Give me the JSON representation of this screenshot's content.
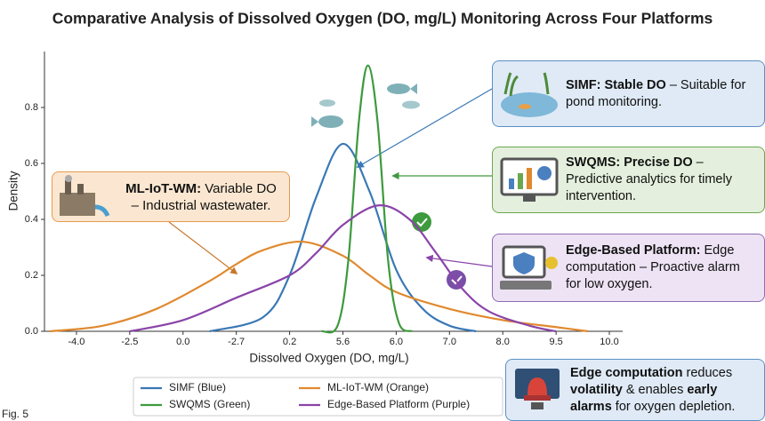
{
  "chart_data": {
    "type": "line",
    "title": "Comparative Analysis of Dissolved Oxygen (DO, mg/L) Monitoring Across Four Platforms",
    "xlabel": "Dissolved Oxygen (DO, mg/L)",
    "ylabel": "Density",
    "x_tick_labels": [
      "-4.0",
      "-2.5",
      "0.0",
      "-2.7",
      "0.2",
      "5.6",
      "6.0",
      "7.0",
      "8.0",
      "9.5",
      "10.0"
    ],
    "xlim": [
      -0.6,
      10.25
    ],
    "ylim": [
      0,
      1.0
    ],
    "yticks": [
      {
        "value": 0,
        "label": "0.0"
      },
      0.2,
      0.4,
      0.6,
      0.8
    ],
    "series": [
      {
        "name": "SIMF (Blue)",
        "color": "#3a78b5",
        "x": [
          2.5,
          3.5,
          4.0,
          4.5,
          5.0,
          5.5,
          6.0,
          6.5,
          7.0,
          7.5
        ],
        "values": [
          0.0,
          0.05,
          0.2,
          0.48,
          0.67,
          0.5,
          0.22,
          0.08,
          0.02,
          0.0
        ]
      },
      {
        "name": "ML-IoT-WM (Orange)",
        "color": "#e0892e",
        "x": [
          -0.5,
          0.5,
          1.5,
          2.5,
          3.0,
          3.5,
          4.25,
          5.0,
          5.5,
          6.0,
          7.0,
          8.0,
          9.0,
          9.6
        ],
        "values": [
          0.0,
          0.02,
          0.08,
          0.18,
          0.24,
          0.29,
          0.32,
          0.27,
          0.2,
          0.14,
          0.08,
          0.04,
          0.015,
          0.0
        ]
      },
      {
        "name": "SWQMS (Green)",
        "color": "#3d9a3d",
        "x": [
          4.6,
          4.9,
          5.1,
          5.3,
          5.47,
          5.65,
          5.85,
          6.05,
          6.3
        ],
        "values": [
          0.0,
          0.02,
          0.25,
          0.75,
          0.95,
          0.75,
          0.25,
          0.03,
          0.0
        ]
      },
      {
        "name": "Edge-Based Platform (Purple)",
        "color": "#8a44a8",
        "x": [
          1.0,
          2.0,
          3.0,
          4.0,
          4.5,
          5.0,
          5.67,
          6.25,
          6.75,
          7.25,
          7.75,
          8.5,
          9.0
        ],
        "values": [
          0.0,
          0.04,
          0.12,
          0.2,
          0.28,
          0.38,
          0.45,
          0.4,
          0.28,
          0.15,
          0.07,
          0.02,
          0.0
        ]
      }
    ],
    "annotations": [
      {
        "runs": [
          {
            "text": "SIMF: Stable DO",
            "bold": true
          },
          {
            "text": " – Suitable for pond monitoring.",
            "bold": false
          }
        ]
      },
      {
        "runs": [
          {
            "text": "SWQMS: Precise DO",
            "bold": true
          },
          {
            "text": " – Predictive analytics for timely intervention.",
            "bold": false
          }
        ]
      },
      {
        "runs": [
          {
            "text": "Edge-Based Platform:",
            "bold": true
          },
          {
            "text": " Edge computation – Proactive alarm for low oxygen.",
            "bold": false
          }
        ]
      },
      {
        "runs": [
          {
            "text": "ML-IoT-WM:",
            "bold": true
          },
          {
            "text": " Variable DO – Industrial wastewater.",
            "bold": false
          }
        ]
      },
      {
        "runs": [
          {
            "text": "Edge computation",
            "bold": true
          },
          {
            "text": " reduces ",
            "bold": false
          },
          {
            "text": "volatility",
            "bold": true
          },
          {
            "text": " & enables ",
            "bold": false
          },
          {
            "text": "early alarms",
            "bold": true
          },
          {
            "text": " for oxygen depletion.",
            "bold": false
          }
        ]
      }
    ],
    "caption": "Fig. 5"
  }
}
